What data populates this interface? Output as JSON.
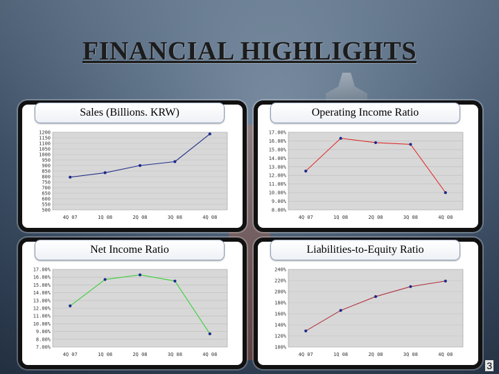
{
  "page": {
    "title": "FINANCIAL HIGHLIGHTS",
    "page_number": "3"
  },
  "chart_data": [
    {
      "type": "line",
      "title": "Sales (Billions. KRW)",
      "categories": [
        "4Q 07",
        "1Q 08",
        "2Q 08",
        "3Q 08",
        "4Q 08"
      ],
      "series": [
        {
          "values": [
            795,
            835,
            900,
            935,
            1185
          ],
          "color": "#1f2e8a"
        }
      ],
      "ylim": [
        500,
        1200
      ],
      "yticks": [
        "1200",
        "1150",
        "1100",
        "1050",
        "1000",
        "950",
        "900",
        "850",
        "800",
        "750",
        "700",
        "650",
        "600",
        "550",
        "500"
      ],
      "grid": true
    },
    {
      "type": "line",
      "title": "Operating Income Ratio",
      "categories": [
        "4Q 07",
        "1Q 08",
        "2Q 08",
        "3Q 08",
        "4Q 08"
      ],
      "series": [
        {
          "values": [
            12.5,
            16.3,
            15.8,
            15.6,
            10.0
          ],
          "color": "#e03030"
        }
      ],
      "ylim": [
        8.0,
        17.0
      ],
      "yticks": [
        "17.00%",
        "16.00%",
        "15.00%",
        "14.00%",
        "13.00%",
        "12.00%",
        "11.00%",
        "10.00%",
        "9.00%",
        "8.00%"
      ],
      "grid": true
    },
    {
      "type": "line",
      "title": "Net Income Ratio",
      "categories": [
        "4Q 07",
        "1Q 08",
        "2Q 08",
        "3Q 08",
        "4Q 08"
      ],
      "series": [
        {
          "values": [
            12.3,
            15.7,
            16.3,
            15.5,
            8.7
          ],
          "color": "#3bcf3b"
        }
      ],
      "ylim": [
        7.0,
        17.0
      ],
      "yticks": [
        "17.00%",
        "16.00%",
        "15.00%",
        "14.00%",
        "13.00%",
        "12.00%",
        "11.00%",
        "10.00%",
        "9.00%",
        "8.00%",
        "7.00%"
      ],
      "grid": true
    },
    {
      "type": "line",
      "title": "Liabilities-to-Equity Ratio",
      "categories": [
        "4Q 07",
        "1Q 08",
        "2Q 08",
        "3Q 08",
        "4Q 08"
      ],
      "series": [
        {
          "values": [
            129,
            166,
            191,
            209,
            219
          ],
          "color": "#b03040"
        }
      ],
      "ylim": [
        100,
        240
      ],
      "yticks": [
        "240%",
        "220%",
        "200%",
        "180%",
        "160%",
        "140%",
        "120%",
        "100%"
      ],
      "grid": true
    }
  ]
}
